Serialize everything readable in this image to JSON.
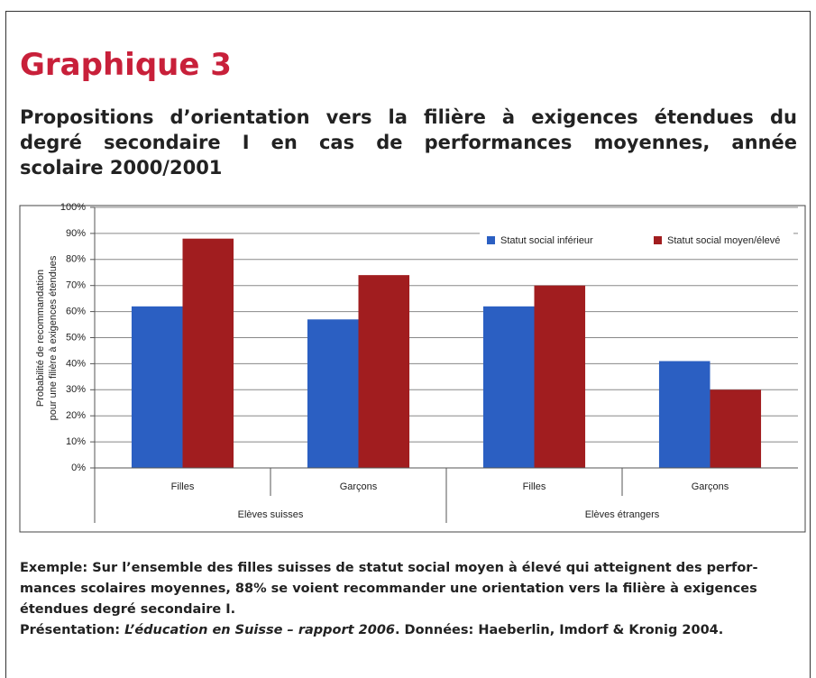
{
  "chart_data": {
    "type": "bar",
    "title": "Graphique 3",
    "subtitle": [
      "Propositions d’orientation vers la filière à exigences étendues du",
      "degré secondaire I en cas de performances moyennes, année",
      "scolaire 2000/2001"
    ],
    "ylabel": [
      "Probabilité de recommandation",
      "pour une filière à exigences étendues"
    ],
    "groups": [
      {
        "name": "Elèves suisses",
        "categories": [
          "Filles",
          "Garçons"
        ]
      },
      {
        "name": "Elèves étrangers",
        "categories": [
          "Filles",
          "Garçons"
        ]
      }
    ],
    "series": [
      {
        "name": "Statut social inférieur",
        "color": "#2b5fc2",
        "values": [
          62,
          57,
          62,
          41
        ]
      },
      {
        "name": "Statut social moyen/élevé",
        "color": "#a11d1f",
        "values": [
          88,
          74,
          70,
          30
        ]
      }
    ],
    "ylim": [
      0,
      100
    ],
    "yticks": [
      {
        "value": 0,
        "label": "0%"
      },
      {
        "value": 10,
        "label": "10%"
      },
      {
        "value": 20,
        "label": "20%"
      },
      {
        "value": 30,
        "label": "30%"
      },
      {
        "value": 40,
        "label": "40%"
      },
      {
        "value": 50,
        "label": "50%"
      },
      {
        "value": 60,
        "label": "60%"
      },
      {
        "value": 70,
        "label": "70%"
      },
      {
        "value": 80,
        "label": "80%"
      },
      {
        "value": 90,
        "label": "90%"
      },
      {
        "value": 100,
        "label": "100%"
      }
    ],
    "grid": true,
    "legend": "top-right"
  },
  "notes": {
    "example": [
      "Exemple: Sur l’ensemble des filles suisses de statut social moyen à élevé qui atteignent des perfor-",
      "mances scolaires moyennes, 88% se voient recommander une orientation vers la filière à exigences",
      "étendues degré secondaire I."
    ],
    "presentation": {
      "label": "Présentation:",
      "source": "L’éducation en Suisse – rapport 2006",
      "rest": ". Données: Haeberlin, Imdorf & Kronig 2004."
    }
  }
}
